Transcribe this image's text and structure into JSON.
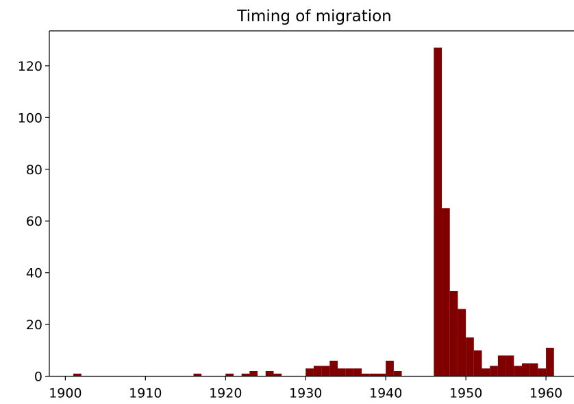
{
  "chart_data": {
    "type": "histogram",
    "title": "Timing of migration",
    "bins": [
      1901,
      1902,
      1903,
      1904,
      1905,
      1906,
      1907,
      1908,
      1909,
      1910,
      1911,
      1912,
      1913,
      1914,
      1915,
      1916,
      1917,
      1918,
      1919,
      1920,
      1921,
      1922,
      1923,
      1924,
      1925,
      1926,
      1927,
      1928,
      1929,
      1930,
      1931,
      1932,
      1933,
      1934,
      1935,
      1936,
      1937,
      1938,
      1939,
      1940,
      1941,
      1942,
      1943,
      1944,
      1945,
      1946,
      1947,
      1948,
      1949,
      1950,
      1951,
      1952,
      1953,
      1954,
      1955,
      1956,
      1957,
      1958,
      1959,
      1960,
      1961
    ],
    "values": [
      1,
      0,
      0,
      0,
      0,
      0,
      0,
      0,
      0,
      0,
      0,
      0,
      0,
      0,
      0,
      1,
      0,
      0,
      0,
      1,
      0,
      1,
      2,
      0,
      2,
      1,
      0,
      0,
      0,
      3,
      4,
      4,
      6,
      3,
      3,
      3,
      1,
      1,
      1,
      6,
      2,
      0,
      0,
      0,
      0,
      127,
      65,
      33,
      26,
      15,
      10,
      3,
      4,
      8,
      8,
      4,
      5,
      5,
      3,
      11
    ],
    "color": "#800000",
    "xlim": [
      1898,
      1963.5
    ],
    "xticks": [
      1900,
      1910,
      1920,
      1930,
      1940,
      1950,
      1960
    ],
    "ylim": [
      0,
      133.5
    ],
    "yticks": [
      0,
      20,
      40,
      60,
      80,
      100,
      120
    ]
  }
}
